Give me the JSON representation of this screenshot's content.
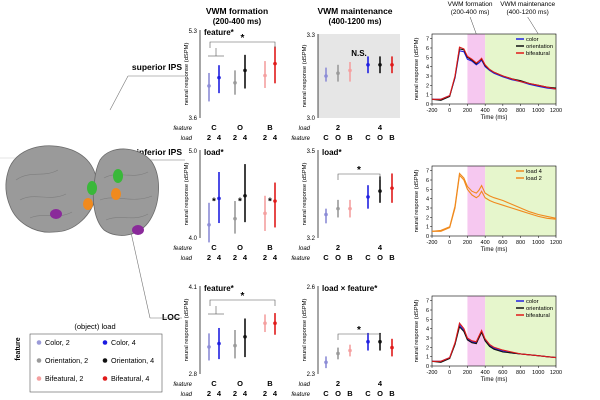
{
  "headers": {
    "formation": "VWM formation",
    "formation_range": "(200-400 ms)",
    "maintenance": "VWM maintenance",
    "maintenance_range": "(400-1200 ms)"
  },
  "regions": {
    "superior": "superior IPS",
    "inferior": "inferior IPS",
    "loc": "LOC"
  },
  "legend": {
    "title": "(object) load",
    "side_label": "feature",
    "entries": [
      {
        "label": "Color, 2",
        "color": "#9a9ad8"
      },
      {
        "label": "Color, 4",
        "color": "#1a1ae0"
      },
      {
        "label": "Orientation, 2",
        "color": "#9a9a9a"
      },
      {
        "label": "Orientation, 4",
        "color": "#111111"
      },
      {
        "label": "Bifeatural, 2",
        "color": "#f4a0a0"
      },
      {
        "label": "Bifeatural, 4",
        "color": "#e01a1a"
      }
    ]
  },
  "axis_words": {
    "feature": "feature",
    "load": "load",
    "ylabel": "neural response (dSPM)"
  },
  "colors": {
    "c2": "#8c8cd6",
    "c4": "#2020e0",
    "o2": "#9a9a9a",
    "o4": "#111111",
    "b2": "#f4a0a0",
    "b4": "#e01a1a",
    "magenta": "#f6c8f0",
    "green": "#e6f6cc",
    "orange": "#f08a1e"
  },
  "chart_data": [
    {
      "id": "sup-form",
      "type": "scatter",
      "layout": "grouped-by-feature",
      "title": "feature*",
      "ylim": [
        3.6,
        5.3
      ],
      "yticks": [
        "5.3",
        "3.6"
      ],
      "groups": [
        "C",
        "O",
        "B"
      ],
      "loads": [
        "2",
        "4"
      ],
      "points": [
        {
          "series": "Color, 2",
          "mean": 4.22,
          "low": 3.92,
          "high": 4.47
        },
        {
          "series": "Color, 4",
          "mean": 4.38,
          "low": 4.08,
          "high": 4.62
        },
        {
          "series": "Orientation, 2",
          "mean": 4.28,
          "low": 4.05,
          "high": 4.52
        },
        {
          "series": "Orientation, 4",
          "mean": 4.52,
          "low": 4.17,
          "high": 4.82
        },
        {
          "series": "Bifeatural, 2",
          "mean": 4.42,
          "low": 4.18,
          "high": 4.7
        },
        {
          "series": "Bifeatural, 4",
          "mean": 4.65,
          "low": 4.27,
          "high": 4.98
        }
      ],
      "sig": "*"
    },
    {
      "id": "sup-maint",
      "type": "scatter",
      "layout": "grouped-by-load",
      "title": "N.S.",
      "ylim": [
        3.0,
        3.3
      ],
      "yticks": [
        "3.3",
        "3.0"
      ],
      "groups": [
        "2",
        "4"
      ],
      "features": [
        "C",
        "O",
        "B"
      ],
      "points": [
        {
          "series": "Color, 2",
          "mean": 3.15,
          "low": 3.13,
          "high": 3.18
        },
        {
          "series": "Orientation, 2",
          "mean": 3.16,
          "low": 3.13,
          "high": 3.19
        },
        {
          "series": "Bifeatural, 2",
          "mean": 3.17,
          "low": 3.13,
          "high": 3.2
        },
        {
          "series": "Color, 4",
          "mean": 3.19,
          "low": 3.16,
          "high": 3.22
        },
        {
          "series": "Orientation, 4",
          "mean": 3.19,
          "low": 3.16,
          "high": 3.22
        },
        {
          "series": "Bifeatural, 4",
          "mean": 3.19,
          "low": 3.16,
          "high": 3.22
        }
      ]
    },
    {
      "id": "inf-form",
      "type": "scatter",
      "layout": "grouped-by-feature",
      "title": "load*",
      "ylim": [
        4.0,
        5.0
      ],
      "yticks": [
        "5.0",
        "4.0"
      ],
      "groups": [
        "C",
        "O",
        "B"
      ],
      "loads": [
        "2",
        "4"
      ],
      "points": [
        {
          "series": "Color, 2",
          "mean": 4.15,
          "low": 3.95,
          "high": 4.4
        },
        {
          "series": "Color, 4",
          "mean": 4.45,
          "low": 4.17,
          "high": 4.75
        },
        {
          "series": "Orientation, 2",
          "mean": 4.22,
          "low": 4.05,
          "high": 4.42
        },
        {
          "series": "Orientation, 4",
          "mean": 4.48,
          "low": 4.18,
          "high": 4.84
        },
        {
          "series": "Bifeatural, 2",
          "mean": 4.28,
          "low": 4.08,
          "high": 4.48
        },
        {
          "series": "Bifeatural, 4",
          "mean": 4.42,
          "low": 4.12,
          "high": 4.63
        }
      ],
      "stars": [
        "*",
        "*",
        "*"
      ]
    },
    {
      "id": "inf-maint",
      "type": "scatter",
      "layout": "grouped-by-load",
      "title": "load*",
      "ylim": [
        3.2,
        3.5
      ],
      "yticks": [
        "3.5",
        "3.2"
      ],
      "groups": [
        "2",
        "4"
      ],
      "features": [
        "C",
        "O",
        "B"
      ],
      "points": [
        {
          "series": "Color, 2",
          "mean": 3.28,
          "low": 3.25,
          "high": 3.3
        },
        {
          "series": "Orientation, 2",
          "mean": 3.3,
          "low": 3.27,
          "high": 3.33
        },
        {
          "series": "Bifeatural, 2",
          "mean": 3.3,
          "low": 3.27,
          "high": 3.33
        },
        {
          "series": "Color, 4",
          "mean": 3.34,
          "low": 3.3,
          "high": 3.38
        },
        {
          "series": "Orientation, 4",
          "mean": 3.36,
          "low": 3.32,
          "high": 3.41
        },
        {
          "series": "Bifeatural, 4",
          "mean": 3.37,
          "low": 3.32,
          "high": 3.42
        }
      ],
      "sig": "*"
    },
    {
      "id": "loc-form",
      "type": "scatter",
      "layout": "grouped-by-feature",
      "title": "feature*",
      "ylim": [
        2.8,
        4.1
      ],
      "yticks": [
        "4.1",
        "2.8"
      ],
      "groups": [
        "C",
        "O",
        "B"
      ],
      "loads": [
        "2",
        "4"
      ],
      "points": [
        {
          "series": "Color, 2",
          "mean": 3.2,
          "low": 3.0,
          "high": 3.4
        },
        {
          "series": "Color, 4",
          "mean": 3.25,
          "low": 3.02,
          "high": 3.48
        },
        {
          "series": "Orientation, 2",
          "mean": 3.22,
          "low": 3.03,
          "high": 3.45
        },
        {
          "series": "Orientation, 4",
          "mean": 3.35,
          "low": 3.05,
          "high": 3.62
        },
        {
          "series": "Bifeatural, 2",
          "mean": 3.55,
          "low": 3.42,
          "high": 3.68
        },
        {
          "series": "Bifeatural, 4",
          "mean": 3.55,
          "low": 3.38,
          "high": 3.7
        }
      ],
      "sig": "*"
    },
    {
      "id": "loc-maint",
      "type": "scatter",
      "layout": "grouped-by-load",
      "title": "load × feature*",
      "ylim": [
        2.3,
        2.6
      ],
      "yticks": [
        "2.6",
        "2.3"
      ],
      "groups": [
        "2",
        "4"
      ],
      "features": [
        "C",
        "O",
        "B"
      ],
      "points": [
        {
          "series": "Color, 2",
          "mean": 2.34,
          "low": 2.32,
          "high": 2.36
        },
        {
          "series": "Orientation, 2",
          "mean": 2.37,
          "low": 2.35,
          "high": 2.39
        },
        {
          "series": "Bifeatural, 2",
          "mean": 2.38,
          "low": 2.36,
          "high": 2.4
        },
        {
          "series": "Color, 4",
          "mean": 2.41,
          "low": 2.38,
          "high": 2.44
        },
        {
          "series": "Orientation, 4",
          "mean": 2.41,
          "low": 2.38,
          "high": 2.44
        },
        {
          "series": "Bifeatural, 4",
          "mean": 2.39,
          "low": 2.36,
          "high": 2.42
        }
      ],
      "sig": "*"
    },
    {
      "id": "sup-time",
      "type": "line",
      "xlim": [
        -200,
        1200
      ],
      "ylim": [
        0,
        7.5
      ],
      "xticks": [
        -200,
        0,
        200,
        400,
        600,
        800,
        1000,
        1200
      ],
      "yticks": [
        0,
        1,
        2,
        3,
        4,
        5,
        6,
        7
      ],
      "xlabel": "Time (ms)",
      "ylabel": "neural response (dSPM)",
      "annotations": [
        "VWM formation",
        "(200-400 ms)",
        "VWM maintenance",
        "(400-1200 ms)"
      ],
      "legend": [
        "color",
        "orientation",
        "bifeatural"
      ],
      "x": [
        -200,
        -100,
        0,
        60,
        110,
        160,
        200,
        250,
        300,
        330,
        360,
        400,
        450,
        500,
        600,
        700,
        800,
        900,
        1000,
        1100,
        1200
      ],
      "series": [
        {
          "name": "color",
          "color": "#2020e0",
          "values": [
            0.5,
            0.5,
            0.9,
            2.8,
            5.7,
            5.6,
            4.8,
            4.6,
            4.2,
            4.4,
            4.7,
            4.0,
            3.6,
            3.3,
            2.9,
            2.6,
            2.4,
            2.1,
            1.9,
            1.7,
            1.6
          ]
        },
        {
          "name": "orientation",
          "color": "#111111",
          "values": [
            0.5,
            0.4,
            0.8,
            2.9,
            5.9,
            5.8,
            5.0,
            4.7,
            4.3,
            4.6,
            4.8,
            4.1,
            3.7,
            3.4,
            3.0,
            2.7,
            2.5,
            2.2,
            2.0,
            1.8,
            1.7
          ]
        },
        {
          "name": "bifeatural",
          "color": "#e01a1a",
          "values": [
            0.5,
            0.5,
            0.9,
            3.0,
            6.1,
            5.9,
            5.1,
            4.8,
            4.4,
            4.6,
            4.9,
            4.2,
            3.7,
            3.4,
            3.0,
            2.7,
            2.4,
            2.2,
            2.0,
            1.8,
            1.6
          ]
        }
      ]
    },
    {
      "id": "inf-time",
      "type": "line",
      "xlim": [
        -200,
        1200
      ],
      "ylim": [
        0,
        7.5
      ],
      "xticks": [
        -200,
        0,
        200,
        400,
        600,
        800,
        1000,
        1200
      ],
      "yticks": [
        0,
        1,
        2,
        3,
        4,
        5,
        6,
        7
      ],
      "xlabel": "Time (ms)",
      "ylabel": "neural response (dSPM)",
      "legend": [
        "load 4",
        "load 2"
      ],
      "x": [
        -200,
        -100,
        0,
        60,
        110,
        160,
        200,
        250,
        300,
        330,
        360,
        400,
        450,
        500,
        600,
        700,
        800,
        900,
        1000,
        1100,
        1200
      ],
      "series": [
        {
          "name": "load 4",
          "color": "#f08a1e",
          "values": [
            0.5,
            0.6,
            1.0,
            3.2,
            6.7,
            6.2,
            5.3,
            4.8,
            4.6,
            4.9,
            5.4,
            4.6,
            4.3,
            4.1,
            3.8,
            3.4,
            3.0,
            2.6,
            2.3,
            2.1,
            1.9
          ]
        },
        {
          "name": "load 2",
          "color": "#f08a1e",
          "values": [
            0.5,
            0.5,
            0.9,
            3.0,
            6.5,
            6.0,
            5.0,
            4.4,
            4.1,
            4.3,
            4.8,
            4.1,
            3.8,
            3.6,
            3.3,
            3.0,
            2.7,
            2.4,
            2.1,
            1.9,
            1.8
          ]
        }
      ]
    },
    {
      "id": "loc-time",
      "type": "line",
      "xlim": [
        -200,
        1200
      ],
      "ylim": [
        0,
        7.5
      ],
      "xticks": [
        -200,
        0,
        200,
        400,
        600,
        800,
        1000,
        1200
      ],
      "yticks": [
        0,
        1,
        2,
        3,
        4,
        5,
        6,
        7
      ],
      "xlabel": "Time (ms)",
      "ylabel": "neural response (dSPM)",
      "legend": [
        "color",
        "orientation",
        "bifeatural"
      ],
      "x": [
        -200,
        -100,
        0,
        60,
        110,
        160,
        200,
        250,
        300,
        330,
        360,
        400,
        450,
        500,
        600,
        700,
        800,
        900,
        1000,
        1100,
        1200
      ],
      "series": [
        {
          "name": "color",
          "color": "#2020e0",
          "values": [
            0.5,
            0.5,
            0.9,
            2.4,
            4.4,
            3.8,
            2.9,
            2.6,
            2.5,
            3.1,
            3.7,
            2.8,
            2.2,
            1.9,
            1.6,
            1.4,
            1.3,
            1.2,
            1.1,
            1.0,
            0.9
          ]
        },
        {
          "name": "orientation",
          "color": "#111111",
          "values": [
            0.5,
            0.4,
            0.8,
            2.3,
            4.2,
            3.7,
            2.8,
            2.5,
            2.4,
            3.0,
            3.6,
            2.7,
            2.1,
            1.8,
            1.5,
            1.4,
            1.3,
            1.2,
            1.1,
            1.0,
            0.9
          ]
        },
        {
          "name": "bifeatural",
          "color": "#e01a1a",
          "values": [
            0.5,
            0.5,
            0.9,
            2.5,
            4.6,
            4.0,
            3.0,
            2.7,
            2.6,
            3.2,
            3.8,
            2.9,
            2.3,
            2.0,
            1.7,
            1.5,
            1.3,
            1.2,
            1.1,
            1.0,
            0.9
          ]
        }
      ]
    }
  ]
}
